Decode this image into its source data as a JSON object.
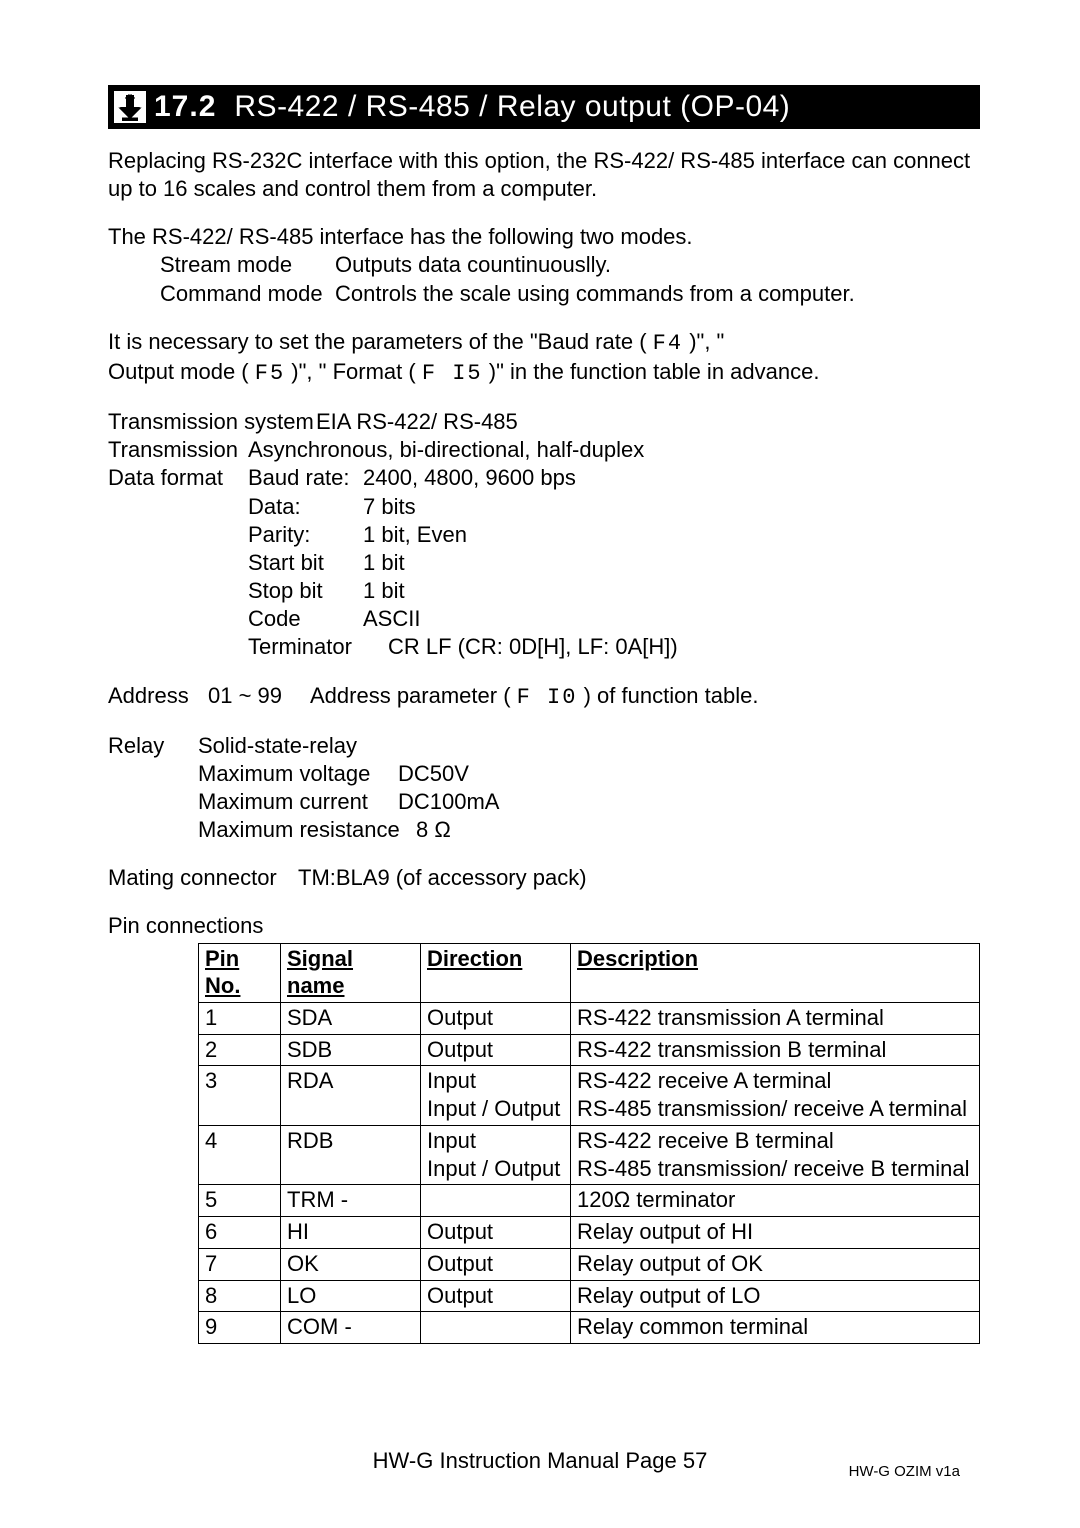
{
  "header": {
    "number": "17.2",
    "title": "RS-422  /  RS-485  /  Relay output (OP-04)"
  },
  "intro": "Replacing RS-232C interface with this option, the RS-422/ RS-485 interface can connect up to 16 scales and control them from a computer.",
  "modes_intro": "The RS-422/ RS-485 interface has the following two modes.",
  "modes": {
    "stream": {
      "label": "Stream mode",
      "desc": "Outputs data countinuouslly."
    },
    "command": {
      "label": "Command mode",
      "desc": "Controls the scale using commands from a computer."
    }
  },
  "params": {
    "line1a": "It is necessary to set the parameters of the \"Baud rate (",
    "f4": "F4",
    "line1b": ")\", \"",
    "line2a": "Output mode (",
    "f5": "F5",
    "line2b": ")\", \" Format (",
    "f15": "F I5",
    "line2c": ")\" in the function table in advance."
  },
  "specs": {
    "trans_sys": {
      "label": "Transmission system",
      "val": "EIA RS-422/ RS-485"
    },
    "trans": {
      "label": "Transmission",
      "val": "Asynchronous, bi-directional, half-duplex"
    },
    "data_format_label": "Data format",
    "baud": {
      "k": "Baud rate:",
      "v": "2400, 4800, 9600 bps"
    },
    "data": {
      "k": "Data:",
      "v": "7 bits"
    },
    "parity": {
      "k": "Parity:",
      "v": "1 bit, Even"
    },
    "start": {
      "k": "Start bit",
      "v": "1 bit"
    },
    "stop": {
      "k": "Stop bit",
      "v": "1 bit"
    },
    "code": {
      "k": "Code",
      "v": "ASCII"
    },
    "term": {
      "k": "Terminator",
      "v": "CR LF   (CR: 0D[H], LF: 0A[H])"
    }
  },
  "address": {
    "label": "Address",
    "range": "01 ~ 99",
    "desc_a": "Address parameter (",
    "f10": "F I0",
    "desc_b": ") of function table."
  },
  "relay": {
    "label": "Relay",
    "type": "Solid-state-relay",
    "voltage": {
      "k": "Maximum voltage",
      "v": "DC50V"
    },
    "current": {
      "k": "Maximum current",
      "v": "DC100mA"
    },
    "resistance": {
      "k": "Maximum resistance",
      "v": "8 Ω"
    }
  },
  "mating": {
    "label": "Mating connector",
    "val": "TM:BLA9 (of accessory pack)"
  },
  "pin_section_label": "Pin connections",
  "pin_table": {
    "headers": [
      "Pin No.",
      "Signal name",
      "Direction",
      "Description"
    ],
    "rows": [
      {
        "pin": "1",
        "sig": "SDA",
        "dir": "Output",
        "desc": "RS-422 transmission A  terminal"
      },
      {
        "pin": "2",
        "sig": "SDB",
        "dir": "Output",
        "desc": "RS-422 transmission B  terminal"
      },
      {
        "pin": "3",
        "sig": "RDA",
        "dir": "Input\nInput / Output",
        "desc": "RS-422 receive A  terminal\nRS-485 transmission/ receive A terminal"
      },
      {
        "pin": "4",
        "sig": "RDB",
        "dir": "Input\nInput / Output",
        "desc": "RS-422 receive B terminal\nRS-485 transmission/ receive B terminal"
      },
      {
        "pin": "5",
        "sig": "TRM  -",
        "dir": "",
        "desc": "120Ω terminator"
      },
      {
        "pin": "6",
        "sig": "HI",
        "dir": "Output",
        "desc": "Relay output of HI"
      },
      {
        "pin": "7",
        "sig": "OK",
        "dir": "Output",
        "desc": "Relay output of OK"
      },
      {
        "pin": "8",
        "sig": "LO",
        "dir": "Output",
        "desc": "Relay output of LO"
      },
      {
        "pin": "9",
        "sig": "COM -",
        "dir": "",
        "desc": "Relay common terminal"
      }
    ]
  },
  "footer": {
    "page": "HW-G Instruction Manual Page 57",
    "rev": "HW-G OZIM v1a"
  }
}
